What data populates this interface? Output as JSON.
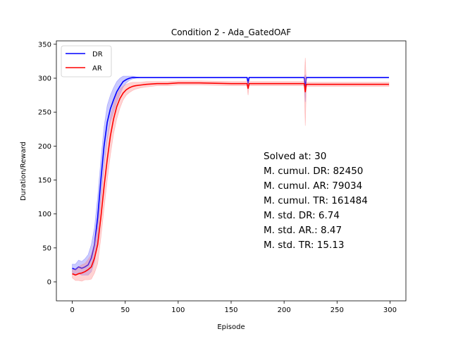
{
  "chart_data": {
    "type": "line",
    "title": "Condition 2 - Ada_GatedOAF",
    "xlabel": "Episode",
    "ylabel": "Duration/Reward",
    "xlim": [
      -15,
      315
    ],
    "ylim": [
      -28,
      355
    ],
    "xticks": [
      0,
      50,
      100,
      150,
      200,
      250,
      300
    ],
    "yticks": [
      0,
      50,
      100,
      150,
      200,
      250,
      300,
      350
    ],
    "legend_position": "upper-left",
    "series": [
      {
        "name": "DR",
        "color": "#0000ff",
        "band_color": "#6666ff",
        "x": [
          0,
          3,
          6,
          9,
          12,
          15,
          18,
          21,
          24,
          27,
          30,
          33,
          36,
          39,
          42,
          45,
          48,
          51,
          54,
          57,
          60,
          65,
          70,
          80,
          100,
          150,
          165,
          166,
          167,
          168,
          200,
          219,
          220,
          221,
          250,
          299
        ],
        "y": [
          20,
          18,
          22,
          20,
          22,
          25,
          35,
          55,
          95,
          150,
          200,
          235,
          255,
          268,
          280,
          288,
          295,
          298,
          300,
          301,
          301,
          301,
          301,
          301,
          301,
          301,
          301,
          293,
          301,
          301,
          301,
          301,
          285,
          301,
          301,
          301
        ],
        "band": [
          6,
          8,
          10,
          10,
          12,
          15,
          20,
          25,
          30,
          30,
          28,
          25,
          20,
          18,
          15,
          12,
          8,
          5,
          3,
          2,
          1,
          0,
          0,
          0,
          0,
          0,
          0,
          8,
          0,
          0,
          0,
          0,
          20,
          0,
          0,
          0
        ]
      },
      {
        "name": "AR",
        "color": "#ff0000",
        "band_color": "#ff8080",
        "x": [
          0,
          3,
          6,
          9,
          12,
          15,
          18,
          21,
          24,
          27,
          30,
          33,
          36,
          39,
          42,
          45,
          48,
          51,
          54,
          57,
          60,
          65,
          70,
          80,
          90,
          100,
          120,
          150,
          165,
          166,
          167,
          168,
          200,
          219,
          220,
          221,
          250,
          280,
          299
        ],
        "y": [
          12,
          10,
          12,
          13,
          15,
          18,
          22,
          35,
          55,
          95,
          140,
          180,
          215,
          240,
          258,
          270,
          278,
          283,
          286,
          288,
          289,
          290,
          291,
          292,
          292,
          293,
          293,
          292,
          292,
          285,
          292,
          292,
          292,
          292,
          280,
          291,
          291,
          291,
          291
        ],
        "band": [
          6,
          8,
          10,
          12,
          12,
          15,
          18,
          22,
          28,
          30,
          32,
          30,
          28,
          22,
          18,
          14,
          10,
          8,
          7,
          6,
          5,
          4,
          4,
          3,
          3,
          3,
          3,
          3,
          3,
          10,
          3,
          3,
          3,
          3,
          50,
          3,
          3,
          3,
          3
        ]
      }
    ],
    "annotations": [
      "Solved at: 30",
      "M. cumul. DR: 82450",
      "M. cumul. AR: 79034",
      "M. cumul. TR: 161484",
      "M. std. DR: 6.74",
      "M. std. AR.: 8.47",
      "M. std. TR: 15.13"
    ]
  }
}
